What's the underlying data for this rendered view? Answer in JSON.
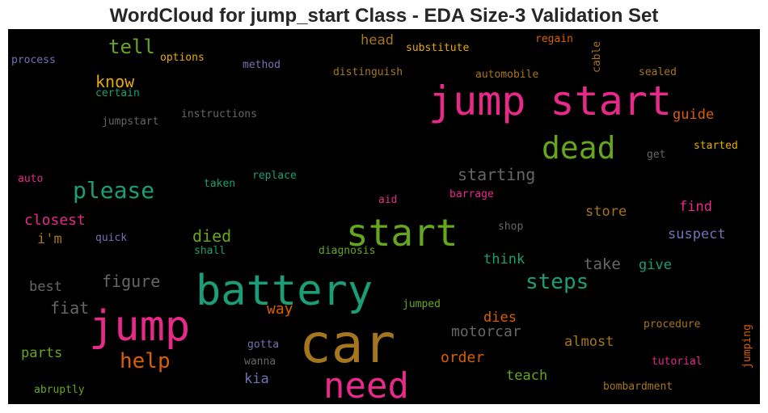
{
  "title": "WordCloud for jump_start Class - EDA Size-3 Validation Set",
  "chart_data": {
    "type": "wordcloud",
    "title": "WordCloud for jump_start Class - EDA Size-3 Validation Set",
    "background": "#000000",
    "palette": "Dark2",
    "words": [
      {
        "text": "jump start",
        "color": "#e7298a"
      },
      {
        "text": "car",
        "color": "#a6761d"
      },
      {
        "text": "battery",
        "color": "#1b9e77"
      },
      {
        "text": "jump",
        "color": "#e7298a"
      },
      {
        "text": "start",
        "color": "#66a61e"
      },
      {
        "text": "need",
        "color": "#e7298a"
      },
      {
        "text": "dead",
        "color": "#66a61e"
      },
      {
        "text": "please",
        "color": "#1b9e77"
      },
      {
        "text": "steps",
        "color": "#1b9e77"
      },
      {
        "text": "help",
        "color": "#d95f02"
      },
      {
        "text": "tell",
        "color": "#66a61e"
      },
      {
        "text": "starting",
        "color": "#666666"
      },
      {
        "text": "know",
        "color": "#e6ab02"
      },
      {
        "text": "figure",
        "color": "#666666"
      },
      {
        "text": "fiat",
        "color": "#666666"
      },
      {
        "text": "died",
        "color": "#66a61e"
      },
      {
        "text": "closest",
        "color": "#e7298a"
      },
      {
        "text": "way",
        "color": "#d95f02"
      },
      {
        "text": "motorcar",
        "color": "#666666"
      },
      {
        "text": "order",
        "color": "#d95f02"
      },
      {
        "text": "take",
        "color": "#666666"
      },
      {
        "text": "head",
        "color": "#a6761d"
      },
      {
        "text": "guide",
        "color": "#d95f02"
      },
      {
        "text": "find",
        "color": "#e7298a"
      },
      {
        "text": "store",
        "color": "#a6761d"
      },
      {
        "text": "suspect",
        "color": "#7570b3"
      },
      {
        "text": "think",
        "color": "#1b9e77"
      },
      {
        "text": "give",
        "color": "#1b9e77"
      },
      {
        "text": "teach",
        "color": "#66a61e"
      },
      {
        "text": "almost",
        "color": "#a6761d"
      },
      {
        "text": "dies",
        "color": "#d95f02"
      },
      {
        "text": "parts",
        "color": "#66a61e"
      },
      {
        "text": "best",
        "color": "#666666"
      },
      {
        "text": "i'm",
        "color": "#a6761d"
      },
      {
        "text": "kia",
        "color": "#7570b3"
      },
      {
        "text": "options",
        "color": "#e6ab02"
      },
      {
        "text": "substitute",
        "color": "#e6ab02"
      },
      {
        "text": "regain",
        "color": "#d95f02"
      },
      {
        "text": "process",
        "color": "#7570b3"
      },
      {
        "text": "method",
        "color": "#7570b3"
      },
      {
        "text": "distinguish",
        "color": "#a6761d"
      },
      {
        "text": "automobile",
        "color": "#a6761d"
      },
      {
        "text": "sealed",
        "color": "#a6761d"
      },
      {
        "text": "certain",
        "color": "#1b9e77"
      },
      {
        "text": "jumpstart",
        "color": "#666666"
      },
      {
        "text": "instructions",
        "color": "#666666"
      },
      {
        "text": "started",
        "color": "#e6ab02"
      },
      {
        "text": "get",
        "color": "#666666"
      },
      {
        "text": "auto",
        "color": "#e7298a"
      },
      {
        "text": "taken",
        "color": "#1b9e77"
      },
      {
        "text": "replace",
        "color": "#1b9e77"
      },
      {
        "text": "aid",
        "color": "#e7298a"
      },
      {
        "text": "barrage",
        "color": "#e7298a"
      },
      {
        "text": "shop",
        "color": "#666666"
      },
      {
        "text": "quick",
        "color": "#7570b3"
      },
      {
        "text": "shall",
        "color": "#1b9e77"
      },
      {
        "text": "diagnosis",
        "color": "#66a61e"
      },
      {
        "text": "jumped",
        "color": "#66a61e"
      },
      {
        "text": "procedure",
        "color": "#a6761d"
      },
      {
        "text": "gotta",
        "color": "#7570b3"
      },
      {
        "text": "wanna",
        "color": "#666666"
      },
      {
        "text": "tutorial",
        "color": "#e7298a"
      },
      {
        "text": "bombardment",
        "color": "#a6761d"
      },
      {
        "text": "abruptly",
        "color": "#66a61e"
      },
      {
        "text": "cable",
        "color": "#a6761d"
      },
      {
        "text": "jumping",
        "color": "#d95f02"
      }
    ]
  }
}
